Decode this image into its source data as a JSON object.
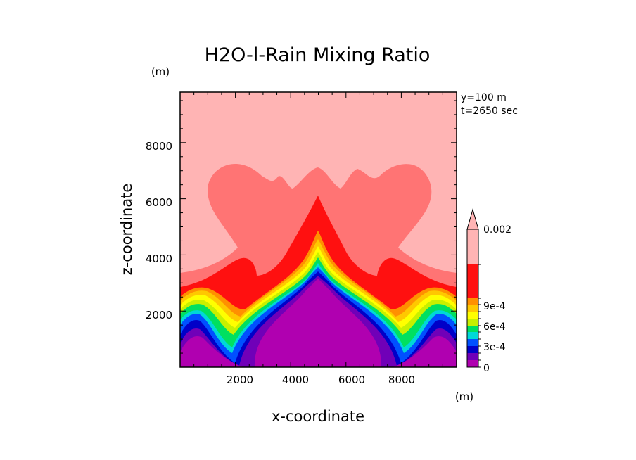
{
  "chart_data": {
    "type": "contour",
    "title": "H2O-l-Rain Mixing Ratio",
    "xlabel": "x-coordinate",
    "ylabel": "z-coordinate",
    "x_unit": "(m)",
    "y_unit": "(m)",
    "xlim": [
      0,
      10000
    ],
    "ylim": [
      0,
      9800
    ],
    "x_ticks": [
      "2000",
      "4000",
      "6000",
      "8000"
    ],
    "y_ticks": [
      "2000",
      "4000",
      "6000",
      "8000"
    ],
    "annotations": [
      "y=100 m",
      "t=2650 sec"
    ],
    "colorbar": {
      "levels": [
        0,
        0.0001,
        0.0002,
        0.0003,
        0.0004,
        0.0005,
        0.0006,
        0.0007,
        0.0008,
        0.0009,
        0.001,
        0.002
      ],
      "tick_labels": [
        "0",
        "3e-4",
        "6e-4",
        "9e-4",
        "0.002"
      ],
      "extend": "max",
      "colors": [
        "#b000b0",
        "#7000b8",
        "#0000c8",
        "#0050ff",
        "#00d8d8",
        "#00e060",
        "#c8f000",
        "#ffff00",
        "#ffc800",
        "#ff9000",
        "#ff1010",
        "#ff7474",
        "#ffb4b4"
      ]
    }
  }
}
